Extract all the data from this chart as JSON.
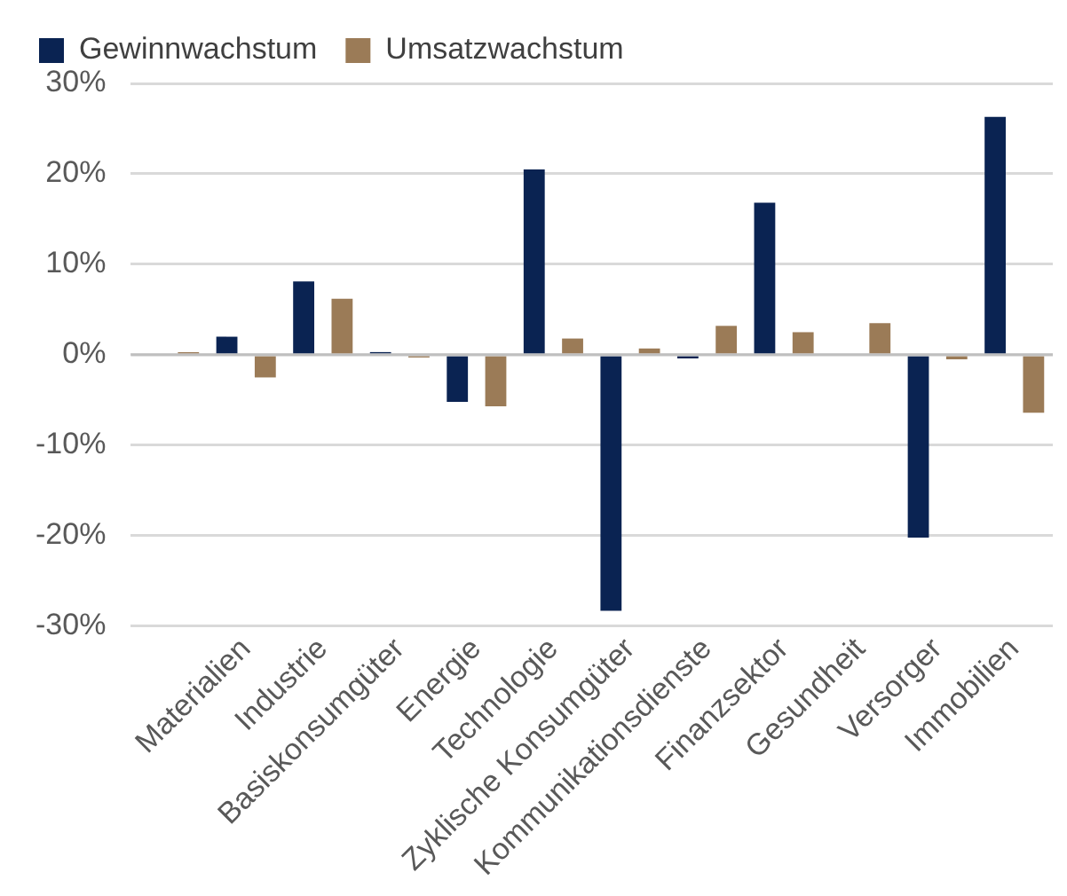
{
  "chart_data": {
    "type": "bar",
    "categories": [
      null,
      "Materialien",
      "Industrie",
      "Basiskonsumgüter",
      "Energie",
      "Technologie",
      "Zyklische Konsumgüter",
      "Kommunikationsdienste",
      "Finanzsektor",
      "Gesundheit",
      "Versorger",
      "Immobilien"
    ],
    "series": [
      {
        "name": "Gewinnwachstum",
        "color": "#0a2352",
        "values": [
          0,
          2,
          8.1,
          0.3,
          -5.2,
          20.5,
          -28.3,
          -0.4,
          16.8,
          0,
          -20.2,
          26.3
        ]
      },
      {
        "name": "Umsatzwachstum",
        "color": "#9b7b57",
        "values": [
          0.3,
          -2.5,
          6.2,
          -0.3,
          -5.7,
          1.8,
          0.7,
          3.2,
          2.5,
          3.5,
          -0.5,
          -6.4
        ]
      }
    ],
    "ylim": [
      -30,
      30
    ],
    "yticks": [
      {
        "value": -30,
        "label": "-30%"
      },
      {
        "value": -20,
        "label": "-20%"
      },
      {
        "value": -10,
        "label": "-10%"
      },
      {
        "value": 0,
        "label": "0%"
      },
      {
        "value": 10,
        "label": "10%"
      },
      {
        "value": 20,
        "label": "20%"
      },
      {
        "value": 30,
        "label": "30%"
      }
    ],
    "grid": "y",
    "legend": "top left"
  }
}
